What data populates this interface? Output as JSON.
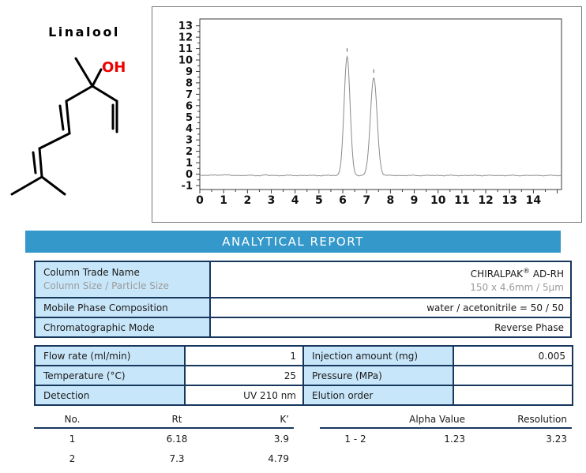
{
  "molecule": {
    "title": "Linalool",
    "hydroxyl_label": "OH",
    "bond_color": "#000000",
    "hydroxyl_color": "#ee0000"
  },
  "banner": {
    "title": "ANALYTICAL REPORT",
    "bg_color": "#3598ca"
  },
  "column_table": {
    "rows": [
      {
        "label": "Column Trade Name",
        "sublabel": "Column Size / Particle Size",
        "value_main": "CHIRALPAK",
        "value_sup": "®",
        "value_tail": " AD-RH",
        "subvalue": "150 x 4.6mm / 5µm"
      },
      {
        "label": "Mobile Phase Composition",
        "value": "water / acetonitrile = 50 / 50"
      },
      {
        "label": "Chromatographic Mode",
        "value": "Reverse Phase"
      }
    ]
  },
  "conditions_table": {
    "rows": [
      {
        "label1": "Flow rate (ml/min)",
        "value1": "1",
        "label2": "Injection amount (mg)",
        "value2": "0.005"
      },
      {
        "label1": "Temperature (°C)",
        "value1": "25",
        "label2": "Pressure (MPa)",
        "value2": ""
      },
      {
        "label1": "Detection",
        "value1": "UV 210 nm",
        "label2": "Elution order",
        "value2": ""
      }
    ]
  },
  "results_table": {
    "headers": [
      "No.",
      "Rt",
      "K’"
    ],
    "rows": [
      [
        "1",
        "6.18",
        "3.9"
      ],
      [
        "2",
        "7.3",
        "4.79"
      ]
    ]
  },
  "separation_table": {
    "headers": [
      "",
      "Alpha Value",
      "Resolution"
    ],
    "rows": [
      [
        "1 - 2",
        "1.23",
        "3.23"
      ]
    ]
  },
  "chart_data": {
    "type": "line",
    "title": "",
    "xlabel": "",
    "ylabel": "",
    "x_range": [
      0,
      15.18
    ],
    "y_range": [
      -1.35,
      13.6
    ],
    "x_ticks": [
      0,
      1,
      2,
      3,
      4,
      5,
      6,
      7,
      8,
      9,
      10,
      11,
      12,
      13,
      14
    ],
    "y_ticks": [
      -1,
      0,
      1,
      2,
      3,
      4,
      5,
      6,
      7,
      8,
      9,
      10,
      11,
      12,
      13
    ],
    "grid": false,
    "legend": "none",
    "baseline": -0.12,
    "peaks": [
      {
        "name": "peak-1",
        "rt": 6.18,
        "height": 10.4,
        "sigma": 0.125,
        "marker": 10.85
      },
      {
        "name": "peak-2",
        "rt": 7.3,
        "height": 8.55,
        "sigma": 0.14,
        "marker": 9.0
      }
    ],
    "trace_color": "#8a8a8a",
    "axis_color": "#3a3a3a",
    "label_color": "#111111"
  }
}
